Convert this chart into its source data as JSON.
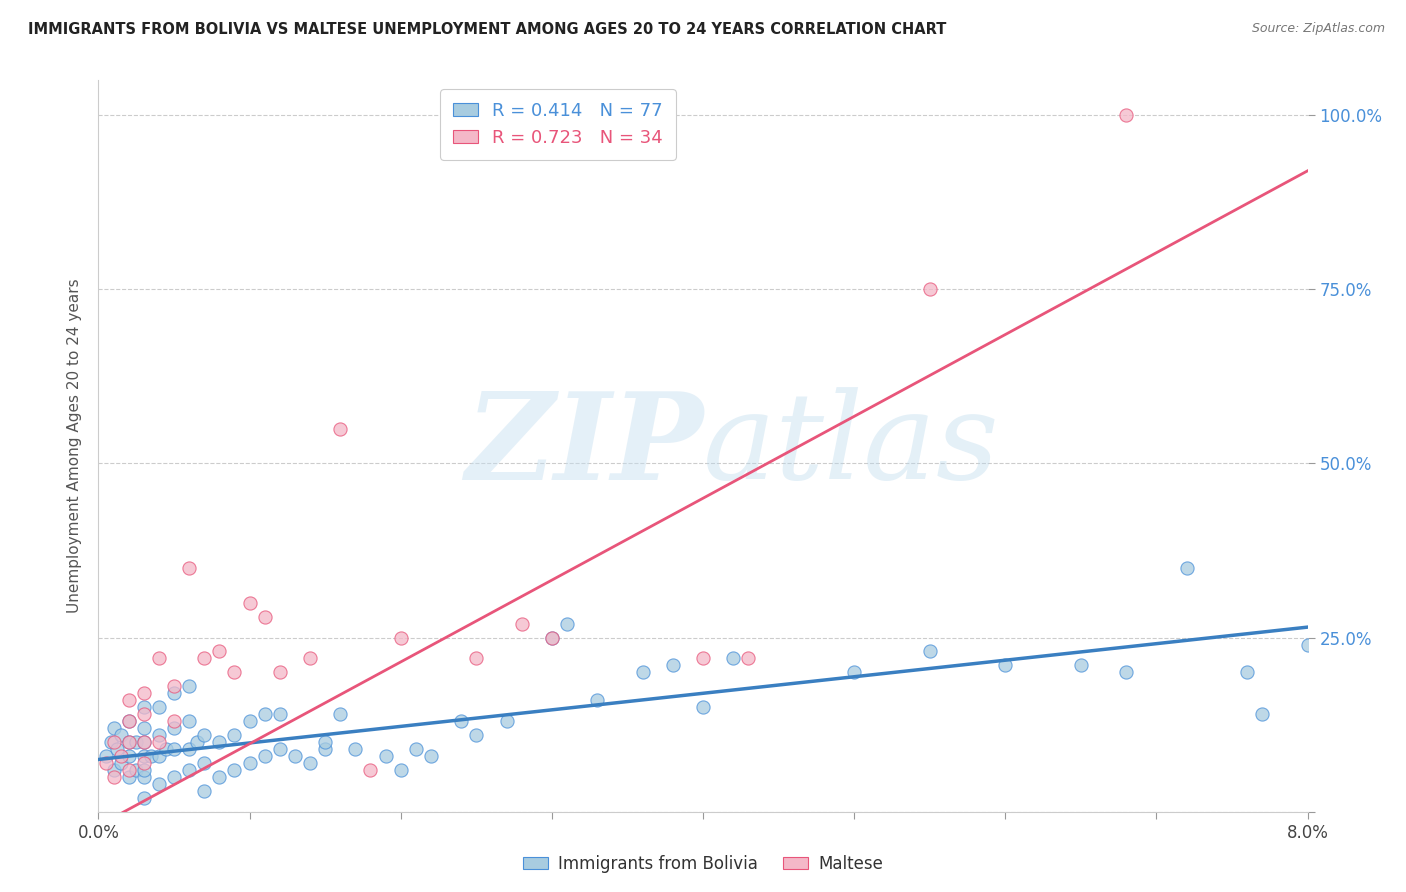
{
  "title": "IMMIGRANTS FROM BOLIVIA VS MALTESE UNEMPLOYMENT AMONG AGES 20 TO 24 YEARS CORRELATION CHART",
  "source": "Source: ZipAtlas.com",
  "ylabel": "Unemployment Among Ages 20 to 24 years",
  "legend_label1": "Immigrants from Bolivia",
  "legend_label2": "Maltese",
  "r1": 0.414,
  "n1": 77,
  "r2": 0.723,
  "n2": 34,
  "color_blue": "#a8cce0",
  "color_pink": "#f4b8c8",
  "color_blue_dark": "#4a90d9",
  "color_pink_dark": "#e8557a",
  "color_blue_text": "#4a90d9",
  "color_pink_text": "#e8557a",
  "color_line_blue": "#3a7fc1",
  "color_line_pink": "#e8557a",
  "xlim": [
    0.0,
    0.08
  ],
  "ylim": [
    0.0,
    1.05
  ],
  "yticks": [
    0.0,
    0.25,
    0.5,
    0.75,
    1.0
  ],
  "ytick_labels": [
    "",
    "25.0%",
    "50.0%",
    "75.0%",
    "100.0%"
  ],
  "xticks": [
    0.0,
    0.01,
    0.02,
    0.03,
    0.04,
    0.05,
    0.06,
    0.07,
    0.08
  ],
  "blue_scatter_x": [
    0.0005,
    0.0008,
    0.001,
    0.001,
    0.0012,
    0.0015,
    0.0015,
    0.002,
    0.002,
    0.002,
    0.002,
    0.0025,
    0.0025,
    0.003,
    0.003,
    0.003,
    0.003,
    0.003,
    0.003,
    0.003,
    0.0035,
    0.004,
    0.004,
    0.004,
    0.004,
    0.0045,
    0.005,
    0.005,
    0.005,
    0.005,
    0.006,
    0.006,
    0.006,
    0.006,
    0.0065,
    0.007,
    0.007,
    0.007,
    0.008,
    0.008,
    0.009,
    0.009,
    0.01,
    0.01,
    0.011,
    0.011,
    0.012,
    0.012,
    0.013,
    0.014,
    0.015,
    0.015,
    0.016,
    0.017,
    0.019,
    0.02,
    0.021,
    0.022,
    0.024,
    0.025,
    0.027,
    0.03,
    0.031,
    0.033,
    0.036,
    0.038,
    0.04,
    0.042,
    0.05,
    0.055,
    0.06,
    0.065,
    0.068,
    0.072,
    0.076,
    0.077,
    0.08
  ],
  "blue_scatter_y": [
    0.08,
    0.1,
    0.06,
    0.12,
    0.09,
    0.07,
    0.11,
    0.05,
    0.08,
    0.1,
    0.13,
    0.06,
    0.1,
    0.02,
    0.05,
    0.06,
    0.08,
    0.1,
    0.12,
    0.15,
    0.08,
    0.04,
    0.08,
    0.11,
    0.15,
    0.09,
    0.05,
    0.09,
    0.12,
    0.17,
    0.06,
    0.09,
    0.13,
    0.18,
    0.1,
    0.03,
    0.07,
    0.11,
    0.05,
    0.1,
    0.06,
    0.11,
    0.07,
    0.13,
    0.08,
    0.14,
    0.09,
    0.14,
    0.08,
    0.07,
    0.09,
    0.1,
    0.14,
    0.09,
    0.08,
    0.06,
    0.09,
    0.08,
    0.13,
    0.11,
    0.13,
    0.25,
    0.27,
    0.16,
    0.2,
    0.21,
    0.15,
    0.22,
    0.2,
    0.23,
    0.21,
    0.21,
    0.2,
    0.35,
    0.2,
    0.14,
    0.24
  ],
  "pink_scatter_x": [
    0.0005,
    0.001,
    0.001,
    0.0015,
    0.002,
    0.002,
    0.002,
    0.002,
    0.003,
    0.003,
    0.003,
    0.003,
    0.004,
    0.004,
    0.005,
    0.005,
    0.006,
    0.007,
    0.008,
    0.009,
    0.01,
    0.011,
    0.012,
    0.014,
    0.016,
    0.018,
    0.02,
    0.025,
    0.028,
    0.03,
    0.04,
    0.043,
    0.055,
    0.068
  ],
  "pink_scatter_y": [
    0.07,
    0.05,
    0.1,
    0.08,
    0.06,
    0.1,
    0.13,
    0.16,
    0.07,
    0.1,
    0.14,
    0.17,
    0.1,
    0.22,
    0.13,
    0.18,
    0.35,
    0.22,
    0.23,
    0.2,
    0.3,
    0.28,
    0.2,
    0.22,
    0.55,
    0.06,
    0.25,
    0.22,
    0.27,
    0.25,
    0.22,
    0.22,
    0.75,
    1.0
  ],
  "blue_line_x": [
    0.0,
    0.08
  ],
  "blue_line_y": [
    0.075,
    0.265
  ],
  "pink_line_x": [
    0.0,
    0.08
  ],
  "pink_line_y": [
    -0.02,
    0.92
  ]
}
